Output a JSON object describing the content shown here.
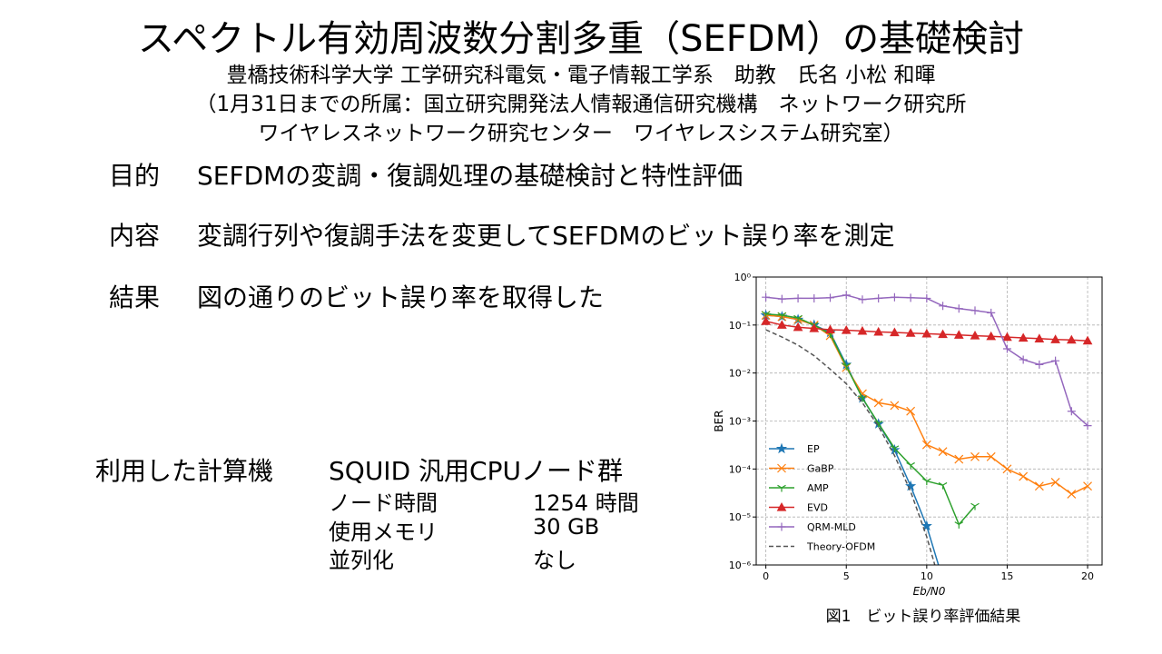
{
  "title": "スペクトル有効周波数分割多重（SEFDM）の基礎検討",
  "author": "豊橋技術科学大学 工学研究科電気・電子情報工学系　助教　氏名 小松 和暉",
  "affiliation": [
    "（1月31日までの所属：国立研究開発法人情報通信研究機構　ネットワーク研究所",
    "ワイヤレスネットワーク研究センター　ワイヤレスシステム研究室）"
  ],
  "items": [
    {
      "label": "目的",
      "text": "SEFDMの変調・復調処理の基礎検討と特性評価"
    },
    {
      "label": "内容",
      "text": "変調行列や復調手法を変更してSEFDMのビット誤り率を測定"
    },
    {
      "label": "結果",
      "text": "図の通りのビット誤り率を取得した"
    }
  ],
  "computer": {
    "label": "利用した計算機",
    "name": "SQUID 汎用CPUノード群",
    "rows": [
      [
        "ノード時間",
        "1254 時間"
      ],
      [
        "使用メモリ",
        "30 GB"
      ],
      [
        "並列化",
        "なし"
      ]
    ]
  },
  "caption": "図1　ビット誤り率評価結果",
  "chart_data": {
    "type": "line",
    "xlabel": "Eb/N0",
    "ylabel": "BER",
    "log_y": true,
    "grid": true,
    "legend": "lower left",
    "x": [
      0,
      1,
      2,
      3,
      4,
      5,
      6,
      7,
      8,
      9,
      10,
      11,
      12,
      13,
      14,
      15,
      16,
      17,
      18,
      19,
      20
    ],
    "xlim": [
      -0.6,
      20.9
    ],
    "xticks": [
      0,
      5,
      10,
      15,
      20
    ],
    "ylim": [
      1e-06,
      1
    ],
    "yticks": [
      {
        "value": 1e-06,
        "label": "10⁻⁶"
      },
      {
        "value": 1e-05,
        "label": "10⁻⁵"
      },
      {
        "value": 0.0001,
        "label": "10⁻⁴"
      },
      {
        "value": 0.001,
        "label": "10⁻³"
      },
      {
        "value": 0.01,
        "label": "10⁻²"
      },
      {
        "value": 0.1,
        "label": "10⁻¹"
      },
      {
        "value": 1,
        "label": "10⁰"
      }
    ],
    "series": [
      {
        "name": "EP",
        "color": "#1f77b4",
        "marker": "star",
        "values": [
          0.16,
          0.15,
          0.13,
          0.1,
          0.07,
          0.015,
          0.003,
          0.00087,
          0.00025,
          4.4e-05,
          6.5e-06,
          5e-07,
          null,
          null,
          null,
          null,
          null,
          null,
          null,
          null,
          null
        ]
      },
      {
        "name": "GaBP",
        "color": "#ff7f0e",
        "marker": "x",
        "values": [
          0.16,
          0.15,
          0.13,
          0.1,
          0.06,
          0.013,
          0.0037,
          0.0024,
          0.0021,
          0.0016,
          0.00032,
          0.00023,
          0.00016,
          0.00018,
          0.00018,
          0.0001,
          7e-05,
          4.4e-05,
          5.3e-05,
          3e-05,
          4.4e-05
        ]
      },
      {
        "name": "AMP",
        "color": "#2ca02c",
        "marker": "tri",
        "values": [
          0.17,
          0.16,
          0.14,
          0.1,
          0.065,
          0.014,
          0.003,
          0.00089,
          0.00027,
          0.00012,
          5.6e-05,
          4.6e-05,
          7e-06,
          1.7e-05,
          null,
          null,
          null,
          null,
          null,
          null,
          null
        ]
      },
      {
        "name": "EVD",
        "color": "#d62728",
        "marker": "triangle",
        "values": [
          0.12,
          0.1,
          0.09,
          0.085,
          0.08,
          0.078,
          0.075,
          0.072,
          0.07,
          0.068,
          0.066,
          0.064,
          0.062,
          0.06,
          0.058,
          0.056,
          0.054,
          0.052,
          0.05,
          0.049,
          0.047
        ]
      },
      {
        "name": "QRM-MLD",
        "color": "#9467bd",
        "marker": "plus",
        "values": [
          0.38,
          0.35,
          0.36,
          0.36,
          0.37,
          0.42,
          0.34,
          0.36,
          0.38,
          0.37,
          0.36,
          0.25,
          0.22,
          0.2,
          0.18,
          0.032,
          0.019,
          0.015,
          0.018,
          0.0016,
          0.0008
        ]
      },
      {
        "name": "Theory-OFDM",
        "color": "#555555",
        "dashed": true,
        "values": [
          0.08,
          0.056,
          0.038,
          0.023,
          0.012,
          0.006,
          0.0024,
          0.00077,
          0.00019,
          3.4e-05,
          3.9e-06,
          2.6e-07,
          null,
          null,
          null,
          null,
          null,
          null,
          null,
          null,
          null
        ]
      }
    ]
  }
}
